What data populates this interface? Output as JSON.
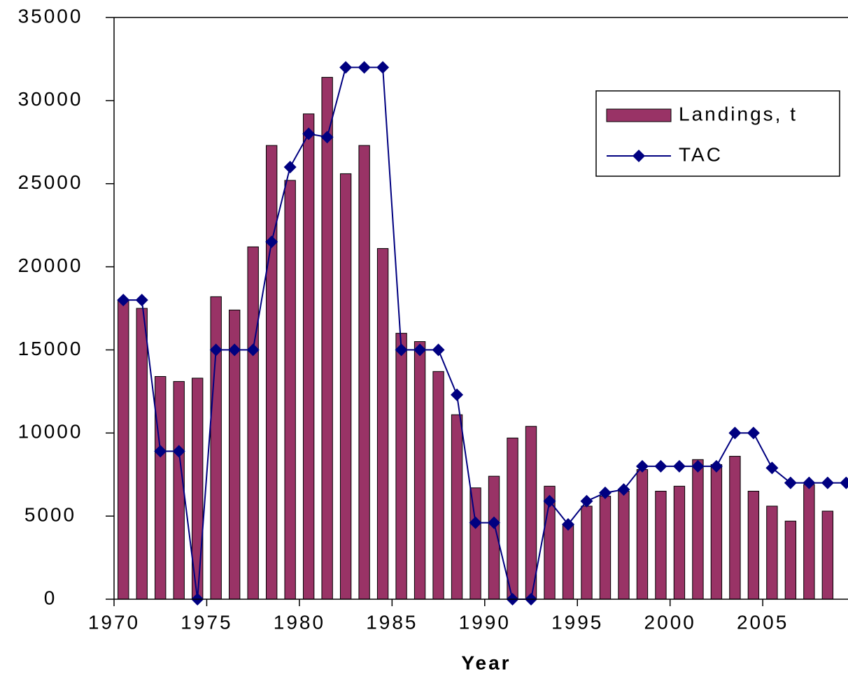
{
  "chart_data": {
    "type": "bar_line",
    "xlabel": "Year",
    "categories": [
      1970,
      1971,
      1972,
      1973,
      1974,
      1975,
      1976,
      1977,
      1978,
      1979,
      1980,
      1981,
      1982,
      1983,
      1984,
      1985,
      1986,
      1987,
      1988,
      1989,
      1990,
      1991,
      1992,
      1993,
      1994,
      1995,
      1996,
      1997,
      1998,
      1999,
      2000,
      2001,
      2002,
      2003,
      2004,
      2005,
      2006,
      2007,
      2008,
      2009
    ],
    "series": [
      {
        "name": "Landings, t",
        "type": "bar",
        "color": "#993366",
        "values": [
          18000,
          17500,
          13400,
          13100,
          13300,
          18200,
          17400,
          21200,
          27300,
          25200,
          29200,
          31400,
          25600,
          27300,
          21100,
          16000,
          15500,
          13700,
          11100,
          6700,
          7400,
          9700,
          10400,
          6800,
          4500,
          5600,
          6200,
          6500,
          7800,
          6500,
          6800,
          8400,
          8100,
          8600,
          6500,
          5600,
          4700,
          6900,
          5300,
          null
        ]
      },
      {
        "name": "TAC",
        "type": "line",
        "color": "#000080",
        "values": [
          18000,
          18000,
          8900,
          8900,
          0,
          15000,
          15000,
          15000,
          21500,
          26000,
          28000,
          27800,
          32000,
          32000,
          32000,
          15000,
          15000,
          15000,
          12300,
          4600,
          4600,
          0,
          0,
          5900,
          4500,
          5900,
          6400,
          6600,
          8000,
          8000,
          8000,
          8000,
          8000,
          10000,
          10000,
          7900,
          7000,
          7000,
          7000,
          7000
        ]
      }
    ],
    "xlim": [
      1970,
      2009.6
    ],
    "xticks": [
      1970,
      1975,
      1980,
      1985,
      1990,
      1995,
      2000,
      2005
    ],
    "ylim": [
      0,
      35000
    ],
    "yticks": [
      0,
      5000,
      10000,
      15000,
      20000,
      25000,
      30000,
      35000
    ],
    "legend": "upper right"
  }
}
